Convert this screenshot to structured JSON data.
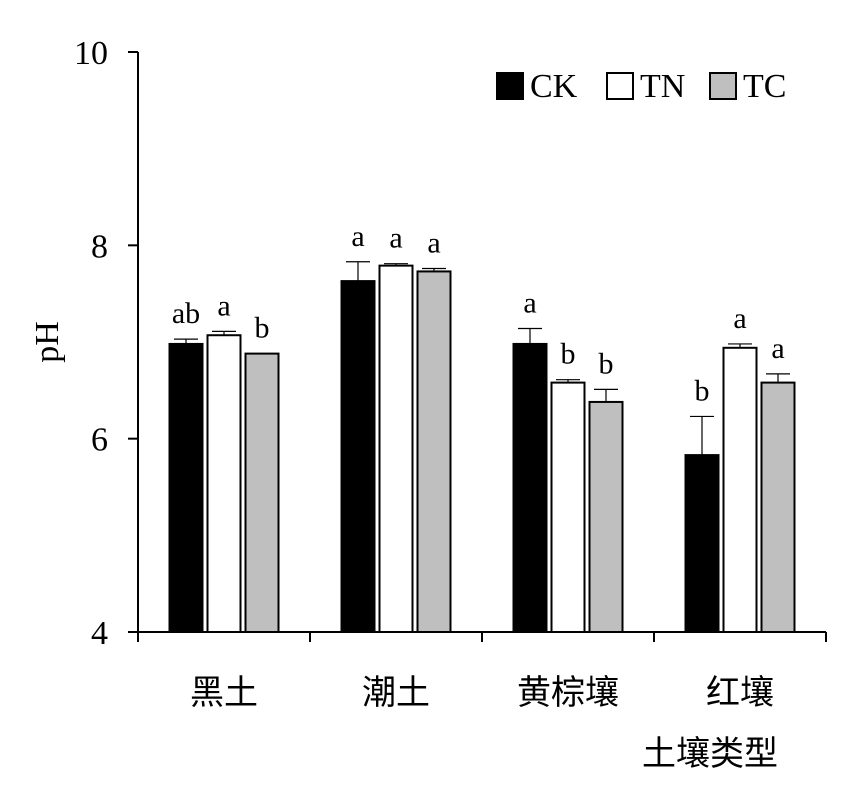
{
  "chart_data": {
    "type": "bar",
    "title": "",
    "xlabel": "土壤类型",
    "ylabel": "pH",
    "ylim": [
      4,
      10
    ],
    "yticks": [
      4,
      6,
      8,
      10
    ],
    "grid": false,
    "legend_position": "top-right",
    "categories": [
      "黑土",
      "潮土",
      "黄棕壤",
      "红壤"
    ],
    "series": [
      {
        "name": "CK",
        "color": "#000000",
        "values": [
          6.98,
          7.63,
          6.98,
          5.83
        ],
        "errors": [
          0.05,
          0.2,
          0.16,
          0.4
        ],
        "significance": [
          "ab",
          "a",
          "a",
          "b"
        ]
      },
      {
        "name": "TN",
        "color": "#ffffff",
        "values": [
          7.07,
          7.79,
          6.58,
          6.94
        ],
        "errors": [
          0.04,
          0.02,
          0.03,
          0.04
        ],
        "significance": [
          "a",
          "a",
          "b",
          "a"
        ]
      },
      {
        "name": "TC",
        "color": "#bfbfbf",
        "values": [
          6.88,
          7.73,
          6.38,
          6.58
        ],
        "errors": [
          0,
          0.03,
          0.13,
          0.09
        ],
        "significance": [
          "b",
          "a",
          "b",
          "a"
        ]
      }
    ]
  }
}
